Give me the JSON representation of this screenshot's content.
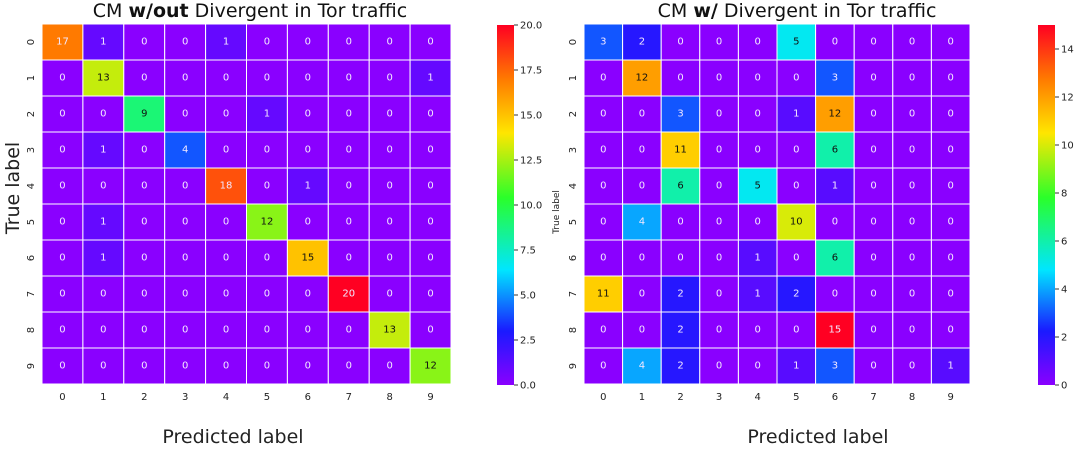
{
  "chart_data": [
    {
      "type": "heatmap",
      "title_prefix": "CM ",
      "title_bold": "w/out",
      "title_suffix": " Divergent in Tor traffic",
      "xlabel": "Predicted label",
      "ylabel": "True label",
      "x_ticks": [
        "0",
        "1",
        "2",
        "3",
        "4",
        "5",
        "6",
        "7",
        "8",
        "9"
      ],
      "y_ticks": [
        "0",
        "1",
        "2",
        "3",
        "4",
        "5",
        "6",
        "7",
        "8",
        "9"
      ],
      "colormap": "gist_rainbow (purple→blue→cyan→green→yellow→orange→red)",
      "vmin": 0,
      "vmax": 20,
      "colorbar_ticks": [
        "0.0",
        "2.5",
        "5.0",
        "7.5",
        "10.0",
        "12.5",
        "15.0",
        "17.5",
        "20.0"
      ],
      "matrix": [
        [
          17,
          1,
          0,
          0,
          1,
          0,
          0,
          0,
          0,
          0
        ],
        [
          0,
          13,
          0,
          0,
          0,
          0,
          0,
          0,
          0,
          1
        ],
        [
          0,
          0,
          9,
          0,
          0,
          1,
          0,
          0,
          0,
          0
        ],
        [
          0,
          1,
          0,
          4,
          0,
          0,
          0,
          0,
          0,
          0
        ],
        [
          0,
          0,
          0,
          0,
          18,
          0,
          1,
          0,
          0,
          0
        ],
        [
          0,
          1,
          0,
          0,
          0,
          12,
          0,
          0,
          0,
          0
        ],
        [
          0,
          1,
          0,
          0,
          0,
          0,
          15,
          0,
          0,
          0
        ],
        [
          0,
          0,
          0,
          0,
          0,
          0,
          0,
          20,
          0,
          0
        ],
        [
          0,
          0,
          0,
          0,
          0,
          0,
          0,
          0,
          13,
          0
        ],
        [
          0,
          0,
          0,
          0,
          0,
          0,
          0,
          0,
          0,
          12
        ]
      ]
    },
    {
      "type": "heatmap",
      "title_prefix": "CM ",
      "title_bold": "w/",
      "title_suffix": " Divergent in Tor traffic",
      "xlabel": "Predicted label",
      "ylabel": "True label",
      "x_ticks": [
        "0",
        "1",
        "2",
        "3",
        "4",
        "5",
        "6",
        "7",
        "8",
        "9"
      ],
      "y_ticks": [
        "0",
        "1",
        "2",
        "3",
        "4",
        "5",
        "6",
        "7",
        "8",
        "9"
      ],
      "colormap": "gist_rainbow (purple→blue→cyan→green→yellow→orange→red)",
      "vmin": 0,
      "vmax": 15,
      "colorbar_ticks": [
        "0",
        "2",
        "4",
        "6",
        "8",
        "10",
        "12",
        "14"
      ],
      "matrix": [
        [
          3,
          2,
          0,
          0,
          0,
          5,
          0,
          0,
          0,
          0
        ],
        [
          0,
          12,
          0,
          0,
          0,
          0,
          3,
          0,
          0,
          0
        ],
        [
          0,
          0,
          3,
          0,
          0,
          1,
          12,
          0,
          0,
          0
        ],
        [
          0,
          0,
          11,
          0,
          0,
          0,
          6,
          0,
          0,
          0
        ],
        [
          0,
          0,
          6,
          0,
          5,
          0,
          1,
          0,
          0,
          0
        ],
        [
          0,
          4,
          0,
          0,
          0,
          10,
          0,
          0,
          0,
          0
        ],
        [
          0,
          0,
          0,
          0,
          1,
          0,
          6,
          0,
          0,
          0
        ],
        [
          11,
          0,
          2,
          0,
          1,
          2,
          0,
          0,
          0,
          0
        ],
        [
          0,
          0,
          2,
          0,
          0,
          0,
          15,
          0,
          0,
          0
        ],
        [
          0,
          4,
          2,
          0,
          0,
          1,
          3,
          0,
          0,
          1
        ]
      ]
    }
  ]
}
